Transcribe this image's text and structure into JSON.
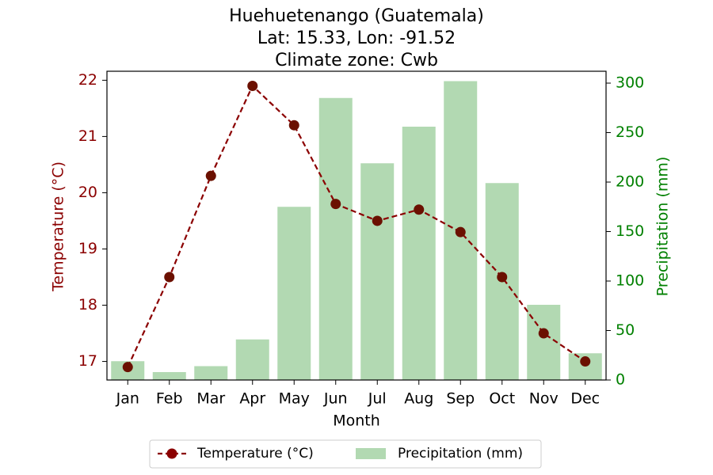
{
  "chart_data": {
    "type": "bar+line",
    "title_lines": [
      "Huehuetenango (Guatemala)",
      "Lat: 15.33, Lon: -91.52",
      "Climate zone: Cwb"
    ],
    "xlabel": "Month",
    "ylabel_left": "Temperature (°C)",
    "ylabel_right": "Precipitation (mm)",
    "categories": [
      "Jan",
      "Feb",
      "Mar",
      "Apr",
      "May",
      "Jun",
      "Jul",
      "Aug",
      "Sep",
      "Oct",
      "Nov",
      "Dec"
    ],
    "temperature": {
      "name": "Temperature (°C)",
      "values": [
        16.9,
        18.5,
        20.3,
        21.9,
        21.2,
        19.8,
        19.5,
        19.7,
        19.3,
        18.5,
        17.5,
        17.0
      ],
      "color": "#8b0000",
      "style": "dashed line with circle markers"
    },
    "precipitation": {
      "name": "Precipitation (mm)",
      "values": [
        19,
        8,
        14,
        41,
        175,
        285,
        219,
        256,
        302,
        199,
        76,
        27
      ],
      "color": "#b2d9b2"
    },
    "left_axis": {
      "ylim": [
        16.67,
        22.16
      ],
      "ticks": [
        17,
        18,
        19,
        20,
        21,
        22
      ],
      "color": "#8b0000"
    },
    "right_axis": {
      "ylim": [
        0,
        312
      ],
      "ticks": [
        0,
        50,
        100,
        150,
        200,
        250,
        300
      ],
      "color": "#008000"
    },
    "grid": false,
    "legend_position": "bottom-center"
  }
}
